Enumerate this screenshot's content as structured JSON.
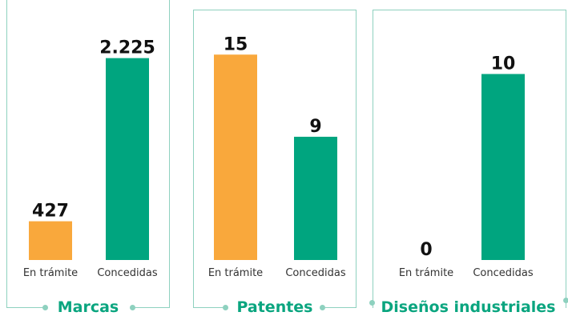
{
  "colors": {
    "pending": "#f9a83c",
    "granted": "#00a57f",
    "frame": "#8ed1bf",
    "title": "#0aa57f"
  },
  "chart_data": [
    {
      "type": "bar",
      "title": "Marcas",
      "categories": [
        "En trámite",
        "Concedidas"
      ],
      "values": [
        427,
        2225
      ],
      "value_labels": [
        "427",
        "2.225"
      ],
      "ylim": [
        0,
        2460
      ]
    },
    {
      "type": "bar",
      "title": "Patentes",
      "categories": [
        "En trámite",
        "Concedidas"
      ],
      "values": [
        15,
        9
      ],
      "value_labels": [
        "15",
        "9"
      ],
      "ylim": [
        0,
        16.3
      ]
    },
    {
      "type": "bar",
      "title": "Diseños industriales",
      "categories": [
        "En trámite",
        "Concedidas"
      ],
      "values": [
        0,
        10
      ],
      "value_labels": [
        "0",
        "10"
      ],
      "ylim": [
        0,
        12
      ]
    }
  ]
}
